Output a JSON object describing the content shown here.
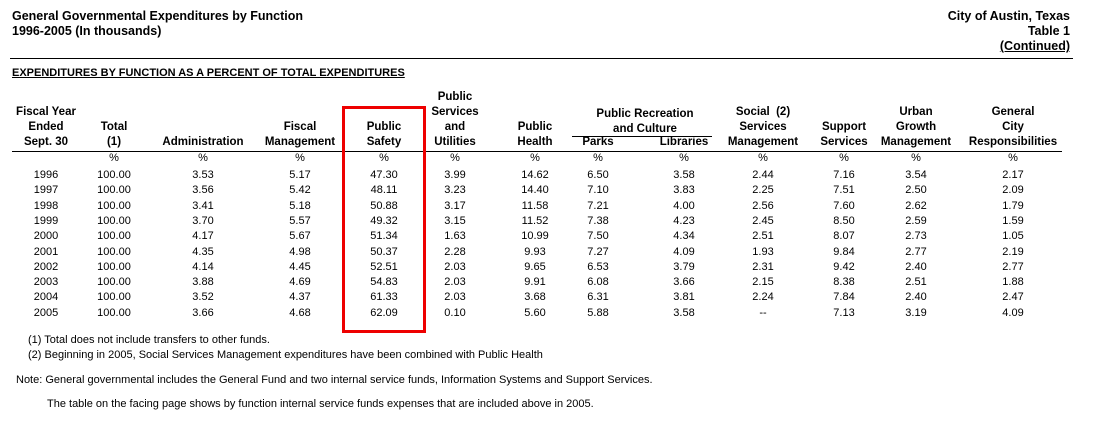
{
  "header": {
    "title_line1": "General Governmental Expenditures by Function",
    "title_line2": "1996-2005 (In thousands)",
    "org": "City of Austin, Texas",
    "table_label": "Table 1",
    "continued": "(Continued)"
  },
  "section_title": "EXPENDITURES BY FUNCTION AS A PERCENT OF TOTAL EXPENDITURES",
  "highlight": {
    "column": "Public Safety",
    "color": "#ee0000"
  },
  "table": {
    "group_headers": {
      "public_recreation": [
        "Public Recreation",
        "and Culture"
      ]
    },
    "columns": [
      {
        "key": "year",
        "label_lines": [
          "Fiscal Year",
          "Ended",
          "Sept. 30"
        ],
        "unit": ""
      },
      {
        "key": "total",
        "label_lines": [
          "Total",
          "(1)"
        ],
        "unit": "%"
      },
      {
        "key": "admin",
        "label_lines": [
          "Administration"
        ],
        "unit": "%"
      },
      {
        "key": "fiscal",
        "label_lines": [
          "Fiscal",
          "Management"
        ],
        "unit": "%"
      },
      {
        "key": "safety",
        "label_lines": [
          "Public",
          "Safety"
        ],
        "unit": "%"
      },
      {
        "key": "utilities",
        "label_lines": [
          "Public",
          "Services",
          "and",
          "Utilities"
        ],
        "unit": "%"
      },
      {
        "key": "health",
        "label_lines": [
          "Public",
          "Health"
        ],
        "unit": "%"
      },
      {
        "key": "parks",
        "label_lines": [
          "Parks"
        ],
        "unit": "%"
      },
      {
        "key": "libraries",
        "label_lines": [
          "Libraries"
        ],
        "unit": "%"
      },
      {
        "key": "social",
        "label_lines": [
          "Social  (2)",
          "Services",
          "Management"
        ],
        "unit": "%"
      },
      {
        "key": "support",
        "label_lines": [
          "Support",
          "Services"
        ],
        "unit": "%"
      },
      {
        "key": "urban",
        "label_lines": [
          "Urban",
          "Growth",
          "Management"
        ],
        "unit": "%"
      },
      {
        "key": "general",
        "label_lines": [
          "General",
          "City",
          "Responsibilities"
        ],
        "unit": "%"
      }
    ],
    "rows": [
      [
        "1996",
        "100.00",
        "3.53",
        "5.17",
        "47.30",
        "3.99",
        "14.62",
        "6.50",
        "3.58",
        "2.44",
        "7.16",
        "3.54",
        "2.17"
      ],
      [
        "1997",
        "100.00",
        "3.56",
        "5.42",
        "48.11",
        "3.23",
        "14.40",
        "7.10",
        "3.83",
        "2.25",
        "7.51",
        "2.50",
        "2.09"
      ],
      [
        "1998",
        "100.00",
        "3.41",
        "5.18",
        "50.88",
        "3.17",
        "11.58",
        "7.21",
        "4.00",
        "2.56",
        "7.60",
        "2.62",
        "1.79"
      ],
      [
        "1999",
        "100.00",
        "3.70",
        "5.57",
        "49.32",
        "3.15",
        "11.52",
        "7.38",
        "4.23",
        "2.45",
        "8.50",
        "2.59",
        "1.59"
      ],
      [
        "2000",
        "100.00",
        "4.17",
        "5.67",
        "51.34",
        "1.63",
        "10.99",
        "7.50",
        "4.34",
        "2.51",
        "8.07",
        "2.73",
        "1.05"
      ],
      [
        "2001",
        "100.00",
        "4.35",
        "4.98",
        "50.37",
        "2.28",
        "9.93",
        "7.27",
        "4.09",
        "1.93",
        "9.84",
        "2.77",
        "2.19"
      ],
      [
        "2002",
        "100.00",
        "4.14",
        "4.45",
        "52.51",
        "2.03",
        "9.65",
        "6.53",
        "3.79",
        "2.31",
        "9.42",
        "2.40",
        "2.77"
      ],
      [
        "2003",
        "100.00",
        "3.88",
        "4.69",
        "54.83",
        "2.03",
        "9.91",
        "6.08",
        "3.66",
        "2.15",
        "8.38",
        "2.51",
        "1.88"
      ],
      [
        "2004",
        "100.00",
        "3.52",
        "4.37",
        "61.33",
        "2.03",
        "3.68",
        "6.31",
        "3.81",
        "2.24",
        "7.84",
        "2.40",
        "2.47"
      ],
      [
        "2005",
        "100.00",
        "3.66",
        "4.68",
        "62.09",
        "0.10",
        "5.60",
        "5.88",
        "3.58",
        "--",
        "7.13",
        "3.19",
        "4.09"
      ]
    ]
  },
  "footnotes": [
    "(1) Total does not include transfers to other funds.",
    "(2) Beginning in 2005, Social Services Management expenditures have been combined with Public Health"
  ],
  "notes": [
    "Note: General governmental includes the General Fund and two internal service funds, Information Systems and Support Services.",
    "The table on the facing page shows by function internal service funds expenses that are included above in 2005."
  ]
}
